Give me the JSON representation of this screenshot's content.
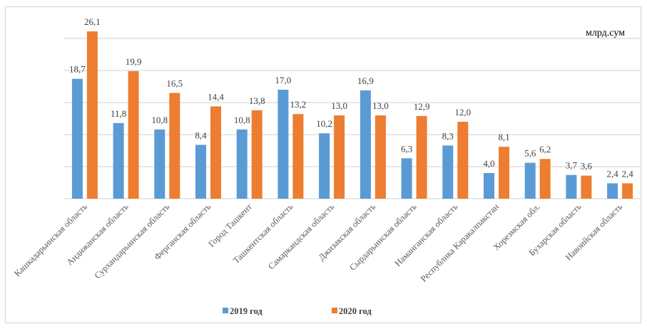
{
  "chart_data": {
    "type": "bar",
    "title": "",
    "unit_label": "млрд.сум",
    "xlabel": "",
    "ylabel": "",
    "ylim": [
      0,
      25
    ],
    "grid": true,
    "legend_position": "bottom",
    "categories": [
      "Кашкадарьинская область",
      "Андижанская область",
      "Сурхандарьинская область",
      "Ферганская область",
      "Город Ташкент",
      "Ташкентская область",
      "Самаркандская область",
      "Джизакская область",
      "Сырдарьинская область",
      "Наманганская область",
      "Республика Каракалпакстан",
      "Хорезмская обл.",
      "Бухарская область",
      "Навоийская область"
    ],
    "series": [
      {
        "name": "2019 год",
        "color": "#5b9bd5",
        "values": [
          18.7,
          11.8,
          10.8,
          8.4,
          10.8,
          17.0,
          10.2,
          16.9,
          6.3,
          8.3,
          4.0,
          5.6,
          3.7,
          2.4
        ],
        "labels": [
          "18,7",
          "11,8",
          "10,8",
          "8,4",
          "10,8",
          "17,0",
          "10,2",
          "16,9",
          "6,3",
          "8,3",
          "4,0",
          "5,6",
          "3,7",
          "2,4"
        ]
      },
      {
        "name": "2020 год",
        "color": "#ed7d31",
        "values": [
          26.1,
          19.9,
          16.5,
          14.4,
          13.8,
          13.2,
          13.0,
          13.0,
          12.9,
          12.0,
          8.1,
          6.2,
          3.6,
          2.4
        ],
        "labels": [
          "26,1",
          "19,9",
          "16,5",
          "14,4",
          "13,8",
          "13,2",
          "13,0",
          "13,0",
          "12,9",
          "12,0",
          "8,1",
          "6,2",
          "3,6",
          "2,4"
        ]
      }
    ]
  }
}
